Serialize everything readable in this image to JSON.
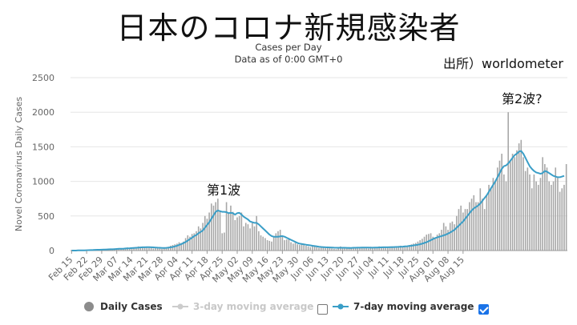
{
  "headline": "日本のコロナ新規感染者",
  "source_note": "出所）worldometer",
  "annotations": {
    "wave1": "第1波",
    "wave2": "第2波?"
  },
  "legend": {
    "daily": "Daily Cases",
    "ma3": "3-day moving average",
    "ma7": "7-day moving average",
    "ma3_checked": false,
    "ma7_checked": true
  },
  "colors": {
    "bars": "#a8a8a8",
    "line": "#3a9ec7",
    "grid": "#e6e6e6",
    "axis": "#666666"
  },
  "chart_data": {
    "type": "bar",
    "title": "Cases per Day",
    "subtitle": "Data as of 0:00 GMT+0",
    "ylabel": "Novel Coronavirus Daily Cases",
    "xlabel": "",
    "ylim": [
      0,
      2500
    ],
    "yticks": [
      0,
      500,
      1000,
      1500,
      2000,
      2500
    ],
    "x_tick_labels": [
      "Feb 15",
      "Feb 22",
      "Feb 29",
      "Mar 07",
      "Mar 14",
      "Mar 21",
      "Mar 28",
      "Apr 04",
      "Apr 11",
      "Apr 18",
      "Apr 25",
      "May 02",
      "May 09",
      "May 16",
      "May 23",
      "May 30",
      "Jun 06",
      "Jun 13",
      "Jun 20",
      "Jun 27",
      "Jul 04",
      "Jul 11",
      "Jul 18",
      "Jul 25",
      "Aug 01",
      "Aug 08",
      "Aug 15"
    ],
    "start_date": "Feb 15",
    "daily_cases": [
      0,
      2,
      3,
      5,
      3,
      5,
      6,
      8,
      10,
      12,
      10,
      14,
      11,
      20,
      15,
      20,
      25,
      15,
      22,
      28,
      30,
      32,
      25,
      20,
      35,
      40,
      45,
      35,
      40,
      48,
      50,
      60,
      55,
      50,
      48,
      45,
      40,
      45,
      30,
      35,
      40,
      30,
      25,
      35,
      45,
      55,
      70,
      80,
      90,
      100,
      120,
      110,
      130,
      180,
      220,
      200,
      240,
      250,
      280,
      350,
      320,
      400,
      500,
      460,
      550,
      680,
      650,
      700,
      750,
      580,
      250,
      260,
      700,
      550,
      650,
      560,
      440,
      480,
      500,
      550,
      350,
      400,
      380,
      320,
      400,
      350,
      500,
      280,
      220,
      200,
      180,
      150,
      140,
      130,
      200,
      250,
      280,
      300,
      200,
      150,
      160,
      180,
      120,
      100,
      110,
      90,
      80,
      100,
      80,
      70,
      60,
      50,
      60,
      70,
      50,
      40,
      45,
      40,
      35,
      50,
      45,
      30,
      25,
      20,
      30,
      60,
      40,
      45,
      30,
      50,
      30,
      35,
      45,
      50,
      50,
      40,
      45,
      40,
      30,
      55,
      40,
      35,
      45,
      60,
      50,
      40,
      50,
      45,
      55,
      60,
      50,
      55,
      65,
      70,
      60,
      70,
      55,
      80,
      90,
      100,
      110,
      130,
      150,
      170,
      200,
      230,
      240,
      250,
      200,
      180,
      230,
      250,
      300,
      400,
      350,
      300,
      400,
      420,
      380,
      500,
      600,
      650,
      550,
      600,
      600,
      700,
      750,
      800,
      700,
      700,
      900,
      750,
      600,
      800,
      950,
      900,
      1050,
      1000,
      1200,
      1300,
      1400,
      1100,
      1000,
      2000,
      1300,
      1400,
      1350,
      1450,
      1550,
      1600,
      1350,
      1150,
      1200,
      1100,
      900,
      1100,
      1000,
      950,
      1050,
      1350,
      1250,
      1200,
      1000,
      950,
      1000,
      1200,
      1050,
      850,
      900,
      950,
      1250
    ],
    "ma7_cases": [
      0,
      0,
      0,
      2,
      3,
      4,
      4,
      5,
      6,
      7,
      8,
      10,
      11,
      12,
      13,
      14,
      15,
      17,
      18,
      19,
      21,
      23,
      25,
      25,
      27,
      30,
      32,
      34,
      36,
      38,
      40,
      42,
      45,
      47,
      48,
      49,
      49,
      48,
      46,
      44,
      42,
      40,
      38,
      38,
      39,
      42,
      46,
      52,
      60,
      70,
      82,
      94,
      108,
      124,
      145,
      165,
      185,
      210,
      225,
      250,
      270,
      290,
      330,
      370,
      410,
      460,
      510,
      560,
      580,
      570,
      560,
      560,
      555,
      540,
      545,
      540,
      520,
      540,
      545,
      520,
      490,
      470,
      450,
      420,
      410,
      400,
      400,
      380,
      350,
      320,
      290,
      260,
      230,
      210,
      200,
      200,
      200,
      205,
      210,
      200,
      185,
      170,
      155,
      140,
      125,
      110,
      100,
      95,
      90,
      85,
      80,
      75,
      70,
      65,
      60,
      56,
      52,
      50,
      48,
      46,
      45,
      44,
      42,
      41,
      40,
      40,
      40,
      40,
      39,
      38,
      38,
      40,
      41,
      42,
      42,
      43,
      43,
      43,
      43,
      42,
      42,
      43,
      44,
      45,
      46,
      47,
      48,
      48,
      49,
      50,
      51,
      52,
      53,
      55,
      57,
      60,
      63,
      66,
      70,
      75,
      80,
      85,
      92,
      100,
      110,
      120,
      135,
      150,
      165,
      180,
      190,
      200,
      210,
      220,
      230,
      245,
      260,
      280,
      300,
      330,
      360,
      390,
      420,
      460,
      500,
      540,
      580,
      610,
      630,
      650,
      680,
      720,
      760,
      800,
      850,
      900,
      950,
      1000,
      1060,
      1120,
      1180,
      1220,
      1230,
      1260,
      1300,
      1340,
      1380,
      1400,
      1430,
      1440,
      1400,
      1340,
      1280,
      1220,
      1180,
      1150,
      1130,
      1120,
      1110,
      1120,
      1150,
      1140,
      1120,
      1100,
      1080,
      1070,
      1060,
      1060,
      1070,
      1080
    ]
  }
}
